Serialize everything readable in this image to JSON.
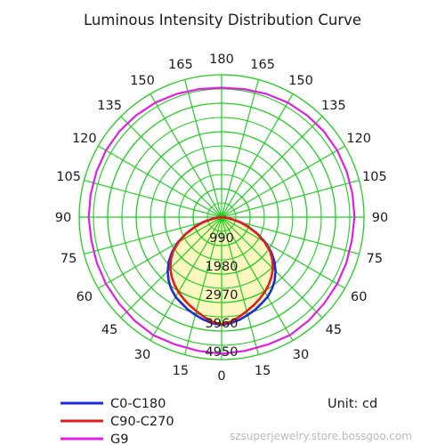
{
  "chart_data": {
    "type": "polar",
    "title": "Luminous Intensity Distribution Curve",
    "unit_label": "Unit: cd",
    "angular_ticks_left": [
      "180",
      "165",
      "150",
      "135",
      "120",
      "105",
      "90",
      "75",
      "60",
      "45",
      "30",
      "15",
      "0"
    ],
    "angular_ticks_right": [
      "180",
      "165",
      "150",
      "135",
      "120",
      "105",
      "90",
      "75",
      "60",
      "45",
      "30",
      "15",
      "0"
    ],
    "radial_ticks": [
      990,
      1980,
      2970,
      3960,
      4950
    ],
    "rmax": 4950,
    "grid": true,
    "legend_position": "bottom-left",
    "series": [
      {
        "name": "C0-C180",
        "color": "#1f2bd9",
        "angles": [
          0,
          5,
          10,
          15,
          20,
          25,
          30,
          35,
          40,
          45,
          50,
          55,
          60,
          65,
          70,
          75,
          80,
          85,
          90
        ],
        "values": [
          3750,
          3700,
          3620,
          3520,
          3420,
          3300,
          3200,
          3050,
          2870,
          2650,
          2400,
          2100,
          1750,
          1380,
          1000,
          650,
          320,
          120,
          0
        ]
      },
      {
        "name": "C90-C270",
        "color": "#e01e1e",
        "angles": [
          0,
          5,
          10,
          15,
          20,
          25,
          30,
          35,
          40,
          45,
          50,
          55,
          60,
          65,
          70,
          75,
          80,
          85,
          90
        ],
        "values": [
          3730,
          3650,
          3520,
          3380,
          3260,
          3130,
          3000,
          2860,
          2700,
          2520,
          2300,
          2050,
          1720,
          1370,
          1000,
          650,
          320,
          120,
          0
        ]
      },
      {
        "name": "G9",
        "color": "#e020e0",
        "angles": [
          0,
          10,
          20,
          30,
          40,
          50,
          60,
          70,
          80,
          90,
          100,
          110,
          120,
          130,
          140,
          150,
          160,
          170,
          180
        ],
        "values": [
          4750,
          4720,
          4710,
          4740,
          4700,
          4660,
          4640,
          4620,
          4600,
          4620,
          4620,
          4630,
          4640,
          4640,
          4620,
          4600,
          4560,
          4520,
          4500
        ]
      }
    ]
  },
  "watermark": "szsuperjewelry.store.bossgoo.com"
}
